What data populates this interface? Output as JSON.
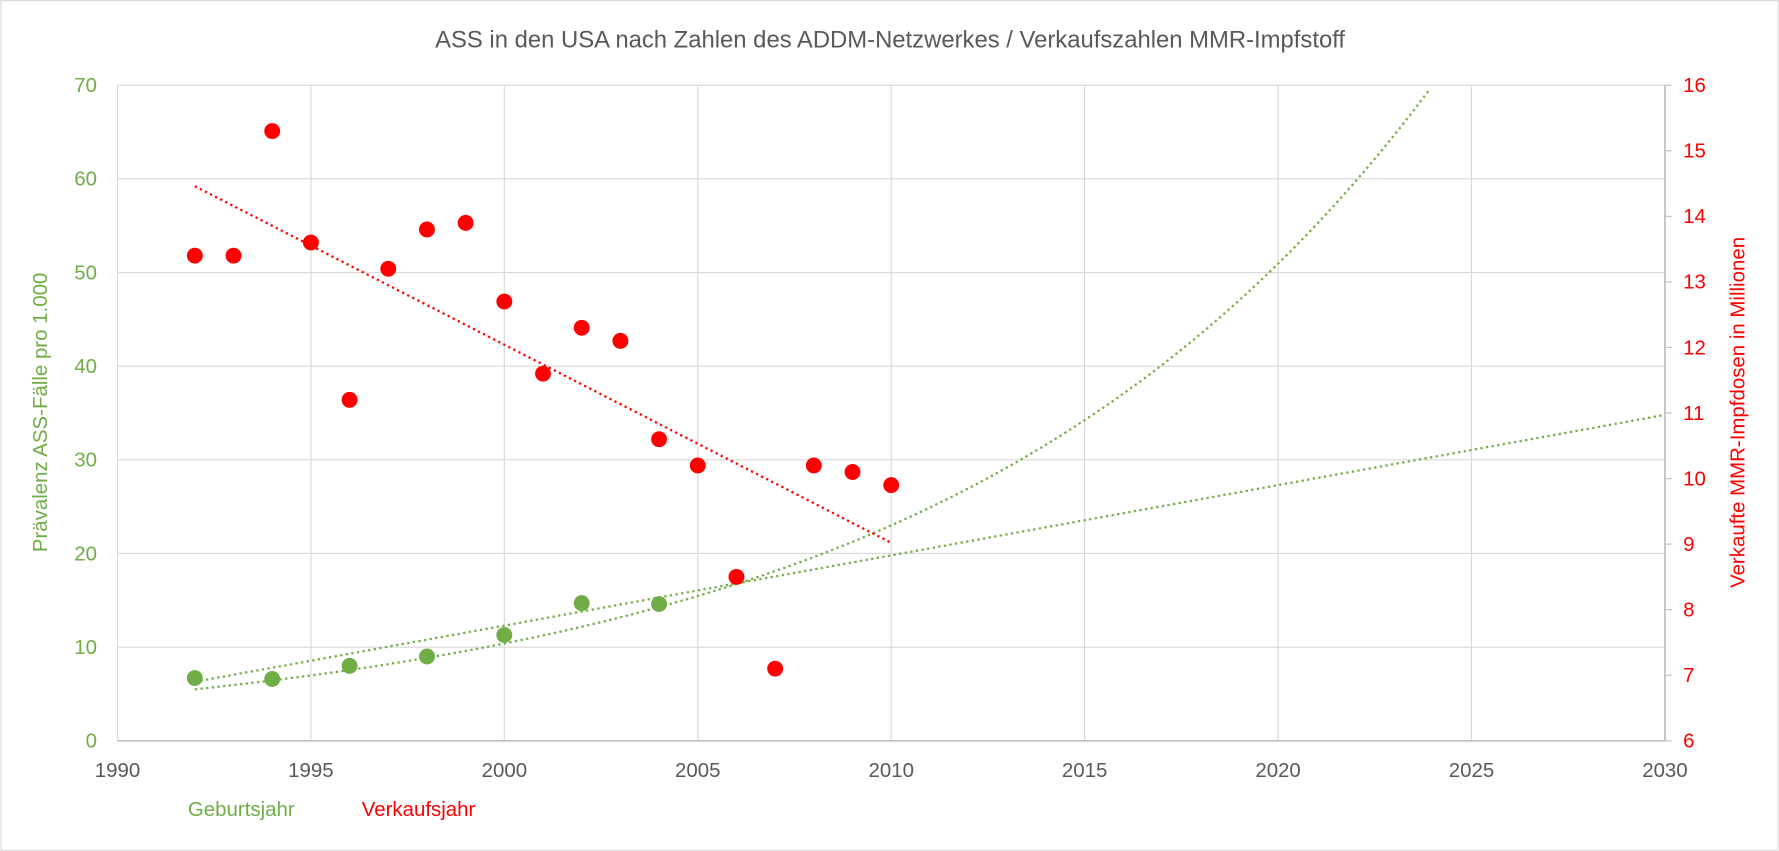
{
  "chart_data": {
    "type": "scatter",
    "title": "ASS in den USA nach Zahlen des ADDM-Netzwerkes / Verkaufszahlen MMR-Impfstoff",
    "xlabel_left": "Geburtsjahr",
    "xlabel_right": "Verkaufsjahr",
    "ylabel_left": "Prävalenz ASS-Fälle pro 1.000",
    "ylabel_right": "Verkaufte MMR-Impfdosen in Millionen",
    "xlim": [
      1990,
      2030
    ],
    "xticks": [
      "1990",
      "1995",
      "2000",
      "2005",
      "2010",
      "2015",
      "2020",
      "2025",
      "2030"
    ],
    "ylim_left": [
      0,
      70
    ],
    "yticks_left": [
      "0",
      "10",
      "20",
      "30",
      "40",
      "50",
      "60",
      "70"
    ],
    "ylim_right": [
      6,
      16
    ],
    "yticks_right": [
      "6",
      "7",
      "8",
      "9",
      "10",
      "11",
      "12",
      "13",
      "14",
      "15",
      "16"
    ],
    "grid": true,
    "colors": {
      "green": "#70AD47",
      "red": "#FF0000",
      "grid": "#D9D9D9",
      "axis_text": "#595959"
    },
    "series": [
      {
        "name": "Prävalenz ASS (Geburtsjahr)",
        "axis": "left",
        "color": "#70AD47",
        "x": [
          1992,
          1994,
          1996,
          1998,
          2000,
          2002,
          2004
        ],
        "y": [
          6.7,
          6.6,
          8.0,
          9.0,
          11.3,
          14.7,
          14.6
        ]
      },
      {
        "name": "MMR-Impfdosen (Verkaufsjahr)",
        "axis": "right",
        "color": "#FF0000",
        "x": [
          1992,
          1993,
          1994,
          1995,
          1996,
          1997,
          1998,
          1999,
          2000,
          2001,
          2002,
          2003,
          2004,
          2005,
          2006,
          2007,
          2008,
          2009,
          2010
        ],
        "y": [
          13.4,
          13.4,
          15.3,
          13.6,
          11.2,
          13.2,
          13.8,
          13.9,
          12.7,
          11.6,
          12.3,
          12.1,
          10.6,
          10.2,
          8.5,
          7.1,
          10.2,
          10.1,
          9.9
        ]
      }
    ],
    "trendlines": [
      {
        "name": "exponential-trend-green",
        "axis": "left",
        "color": "#70AD47",
        "kind": "exponential",
        "x_range": [
          1992,
          2030
        ],
        "a": 5.5,
        "x0": 1992,
        "rate": 0.0795
      },
      {
        "name": "linear-trend-green",
        "axis": "left",
        "color": "#70AD47",
        "kind": "linear",
        "x_range": [
          1992,
          2030
        ],
        "y_start": 6.3,
        "y_end": 34.8
      },
      {
        "name": "linear-trend-red",
        "axis": "right",
        "color": "#FF0000",
        "kind": "linear",
        "x_range": [
          1992,
          2010
        ],
        "y_start": 14.46,
        "y_end": 9.02
      }
    ]
  }
}
